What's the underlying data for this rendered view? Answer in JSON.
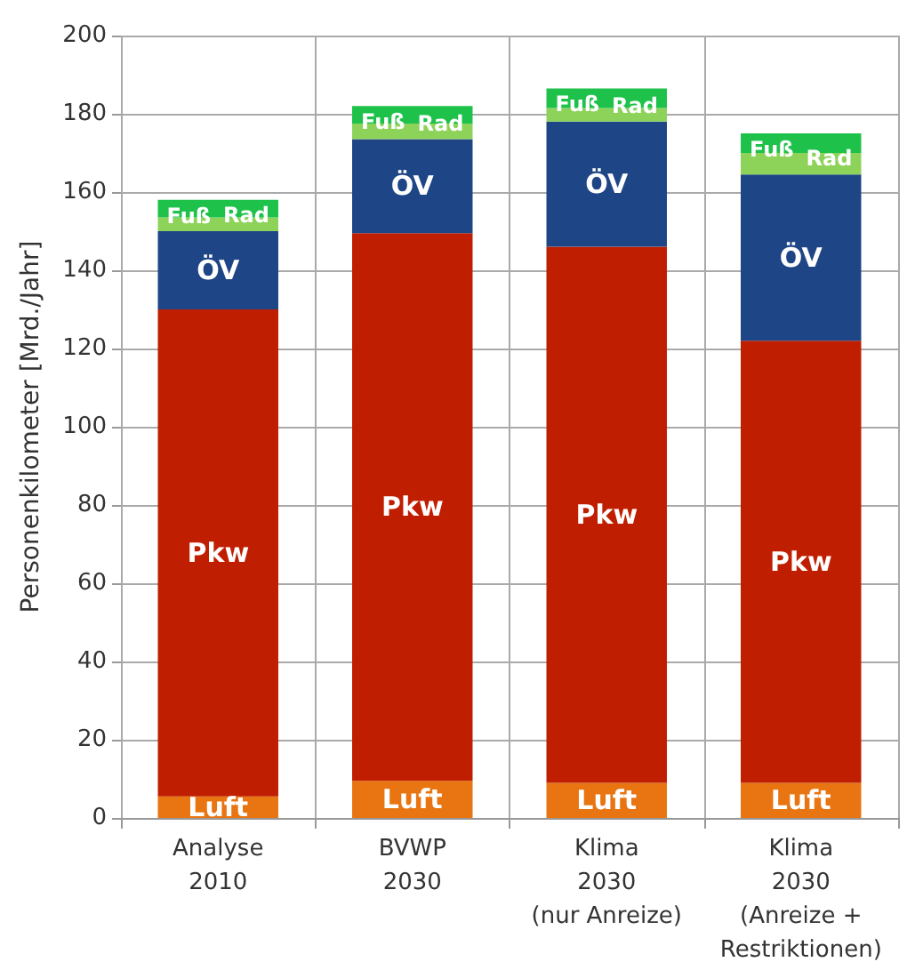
{
  "chart_data": {
    "type": "bar",
    "stacked": true,
    "ylabel": "Personenkilometer [Mrd./Jahr]",
    "categories": [
      "Analyse\n2010",
      "BVWP\n2030",
      "Klima\n2030\n(nur Anreize)",
      "Klima\n2030\n(Anreize +\nRestriktionen)"
    ],
    "series": [
      {
        "name": "Luft",
        "color": "#e87511",
        "values": [
          5.5,
          9.5,
          9,
          9
        ]
      },
      {
        "name": "Pkw",
        "color": "#c01e00",
        "values": [
          124.5,
          140,
          137,
          113
        ]
      },
      {
        "name": "ÖV",
        "color": "#1e4586",
        "values": [
          20,
          24,
          32,
          42.5
        ]
      },
      {
        "name": "Rad",
        "color": "#8dd35a",
        "values": [
          3.5,
          4,
          3.5,
          5.5
        ]
      },
      {
        "name": "Fuß",
        "color": "#1ec24a",
        "values": [
          4.5,
          4.5,
          5,
          5
        ]
      }
    ],
    "ylim": [
      0,
      200
    ],
    "yticks": [
      0,
      20,
      40,
      60,
      80,
      100,
      120,
      140,
      160,
      180,
      200
    ],
    "grid": true,
    "legend": false
  }
}
